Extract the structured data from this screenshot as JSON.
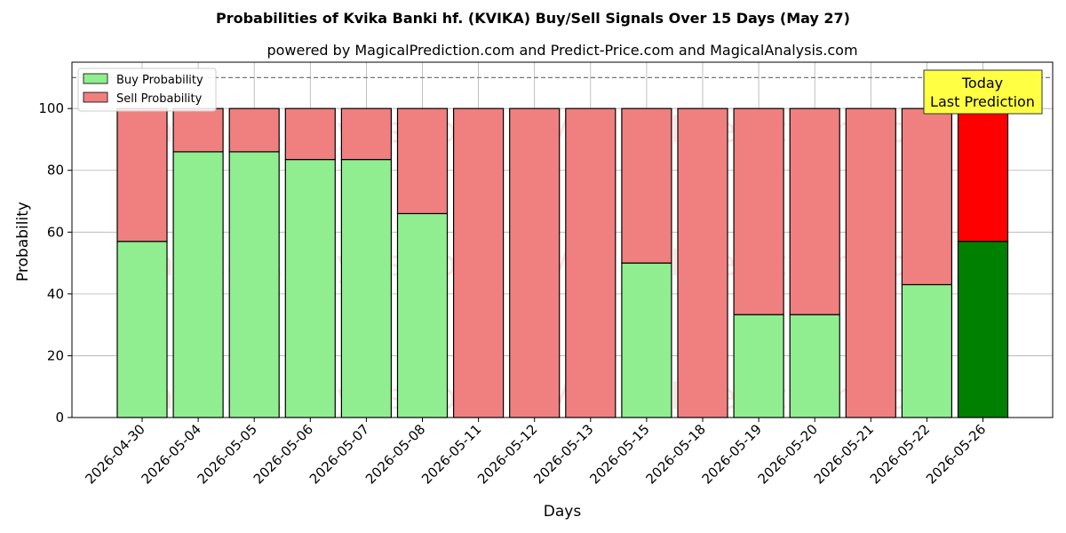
{
  "chart_data": {
    "type": "bar",
    "stacked": true,
    "title": "Probabilities of Kvika Banki hf. (KVIKA) Buy/Sell Signals Over 15 Days (May 27)",
    "subtitle": "powered by MagicalPrediction.com and Predict-Price.com and MagicalAnalysis.com",
    "xlabel": "Days",
    "ylabel": "Probability",
    "ylim": [
      0,
      115
    ],
    "yticks": [
      0,
      20,
      40,
      60,
      80,
      100
    ],
    "grid": true,
    "legend_placement": "top-left",
    "reference_line": 110,
    "categories": [
      "2026-04-30",
      "2026-05-04",
      "2026-05-05",
      "2026-05-06",
      "2026-05-07",
      "2026-05-08",
      "2026-05-11",
      "2026-05-12",
      "2026-05-13",
      "2026-05-15",
      "2026-05-18",
      "2026-05-19",
      "2026-05-20",
      "2026-05-21",
      "2026-05-22",
      "2026-05-26"
    ],
    "series": [
      {
        "name": "Buy Probability",
        "color": "#90ee90",
        "last_color": "#008000",
        "values": [
          57,
          86,
          86,
          83.5,
          83.5,
          66,
          0,
          0,
          0,
          50,
          0,
          33.3,
          33.3,
          0,
          43,
          57
        ]
      },
      {
        "name": "Sell Probability",
        "color": "#f08080",
        "last_color": "#ff0000",
        "values": [
          43,
          14,
          14,
          16.5,
          16.5,
          34,
          100,
          100,
          100,
          50,
          100,
          66.7,
          66.7,
          100,
          57,
          43
        ]
      }
    ],
    "annotation": {
      "line1": "Today",
      "line2": "Last Prediction",
      "color": "#ffff44"
    },
    "watermarks": [
      "MagicalAnalysis.com",
      "MagicalPrediction.com"
    ]
  }
}
